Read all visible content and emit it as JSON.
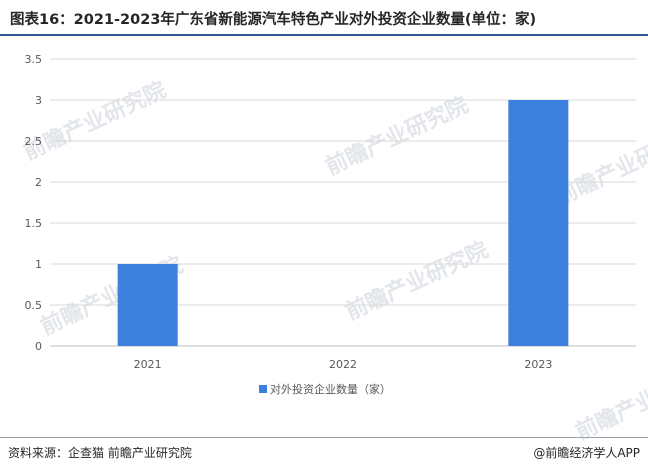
{
  "title": "图表16：2021-2023年广东省新能源汽车特色产业对外投资企业数量(单位：家)",
  "footer": {
    "source": "资料来源：企查猫 前瞻产业研究院",
    "brand": "@前瞻经济学人APP"
  },
  "watermark": {
    "text": "前瞻产业研究院"
  },
  "colors": {
    "bar": "#3a80dc",
    "grid": "#d9d9d9",
    "accent_rule": "#2f5c8f"
  },
  "chart_data": {
    "type": "bar",
    "categories": [
      "2021",
      "2022",
      "2023"
    ],
    "series": [
      {
        "name": "对外投资企业数量（家）",
        "values": [
          1,
          0,
          3
        ]
      }
    ],
    "y_ticks": [
      "0",
      "0.5",
      "1",
      "1.5",
      "2",
      "2.5",
      "3",
      "3.5"
    ],
    "ylim": [
      0,
      3.5
    ],
    "grid": true,
    "legend_position": "bottom"
  }
}
